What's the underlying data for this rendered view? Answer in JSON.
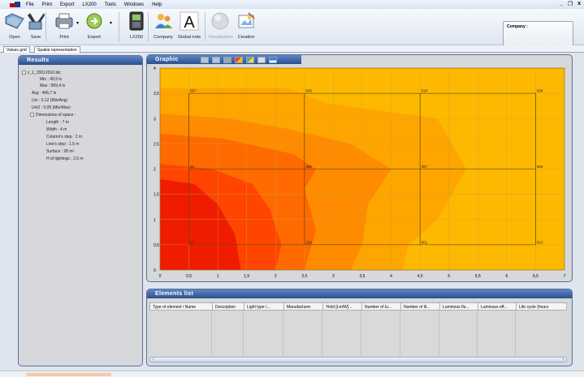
{
  "menu": [
    "File",
    "Print",
    "Export",
    "LX200",
    "Tools",
    "Windows",
    "Help"
  ],
  "window_controls": [
    "_",
    "❐",
    "x"
  ],
  "toolbar": {
    "open": "Open",
    "save": "Save",
    "print": "Print",
    "export": "Export",
    "lx200": "LX200",
    "company": "Company",
    "global_note": "Global note",
    "visualization": "Visualization",
    "creation": "Creation"
  },
  "company_box_label": "Company :",
  "tabs": [
    "Values grid",
    "Spatial representation"
  ],
  "results": {
    "title": "Results",
    "file": "c_1_20012010.ldc",
    "stats": [
      "Min : 49,9 lx",
      "Max : 959,4 lx",
      "Avg : 406,7 lx",
      "Uni : 0,12 (Min/Avg)",
      "Uni2 : 0,05 (Min/Max)"
    ],
    "dimensions_title": "Dimensions of space :",
    "dimensions": [
      "Length : 7 m",
      "Width : 4 m",
      "Column's step : 2 m",
      "Line's step : 1,5 m",
      "Surface : 28 m²",
      "H of lightings : 2,5 m"
    ]
  },
  "graphic": {
    "title": "Graphic",
    "colors": {
      "bg": "#fcb900",
      "level1": "#ffa500",
      "level2": "#ff8c00",
      "level3": "#ff6a00",
      "level4": "#ff4500",
      "level5": "#f01c00"
    }
  },
  "chart_data": {
    "type": "heatmap",
    "x_ticks": [
      "0",
      "0,5",
      "1",
      "1,5",
      "2",
      "2,5",
      "3",
      "3,5",
      "4",
      "4,5",
      "5",
      "5,5",
      "6",
      "6,5",
      "7"
    ],
    "y_ticks": [
      "0",
      "0,5",
      "1",
      "1,5",
      "2",
      "2,5",
      "3",
      "3,5",
      "4"
    ],
    "xlim": [
      0,
      7
    ],
    "ylim": [
      0,
      4
    ],
    "grid": true,
    "points": [
      {
        "x": 0.5,
        "y": 3.5,
        "label": "557"
      },
      {
        "x": 2.5,
        "y": 3.5,
        "label": "509"
      },
      {
        "x": 4.5,
        "y": 3.5,
        "label": "518"
      },
      {
        "x": 6.5,
        "y": 3.5,
        "label": "539"
      },
      {
        "x": 0.5,
        "y": 2,
        "label": "61"
      },
      {
        "x": 2.5,
        "y": 2,
        "label": "385"
      },
      {
        "x": 4.5,
        "y": 2,
        "label": "457"
      },
      {
        "x": 6.5,
        "y": 2,
        "label": "556"
      },
      {
        "x": 0.5,
        "y": 0.5,
        "label": "57"
      },
      {
        "x": 2.5,
        "y": 0.5,
        "label": "229"
      },
      {
        "x": 4.5,
        "y": 0.5,
        "label": "501"
      },
      {
        "x": 6.5,
        "y": 0.5,
        "label": "512"
      }
    ]
  },
  "elements": {
    "title": "Elements list",
    "columns": [
      "Type of element / Name",
      "Description",
      "Light type /...",
      "Manufacturer",
      "Yield [Lm/W]...",
      "Number of tu...",
      "Number of lil...",
      "Luminous flu...",
      "Luminous eff...",
      "Life cycle (hours"
    ]
  }
}
